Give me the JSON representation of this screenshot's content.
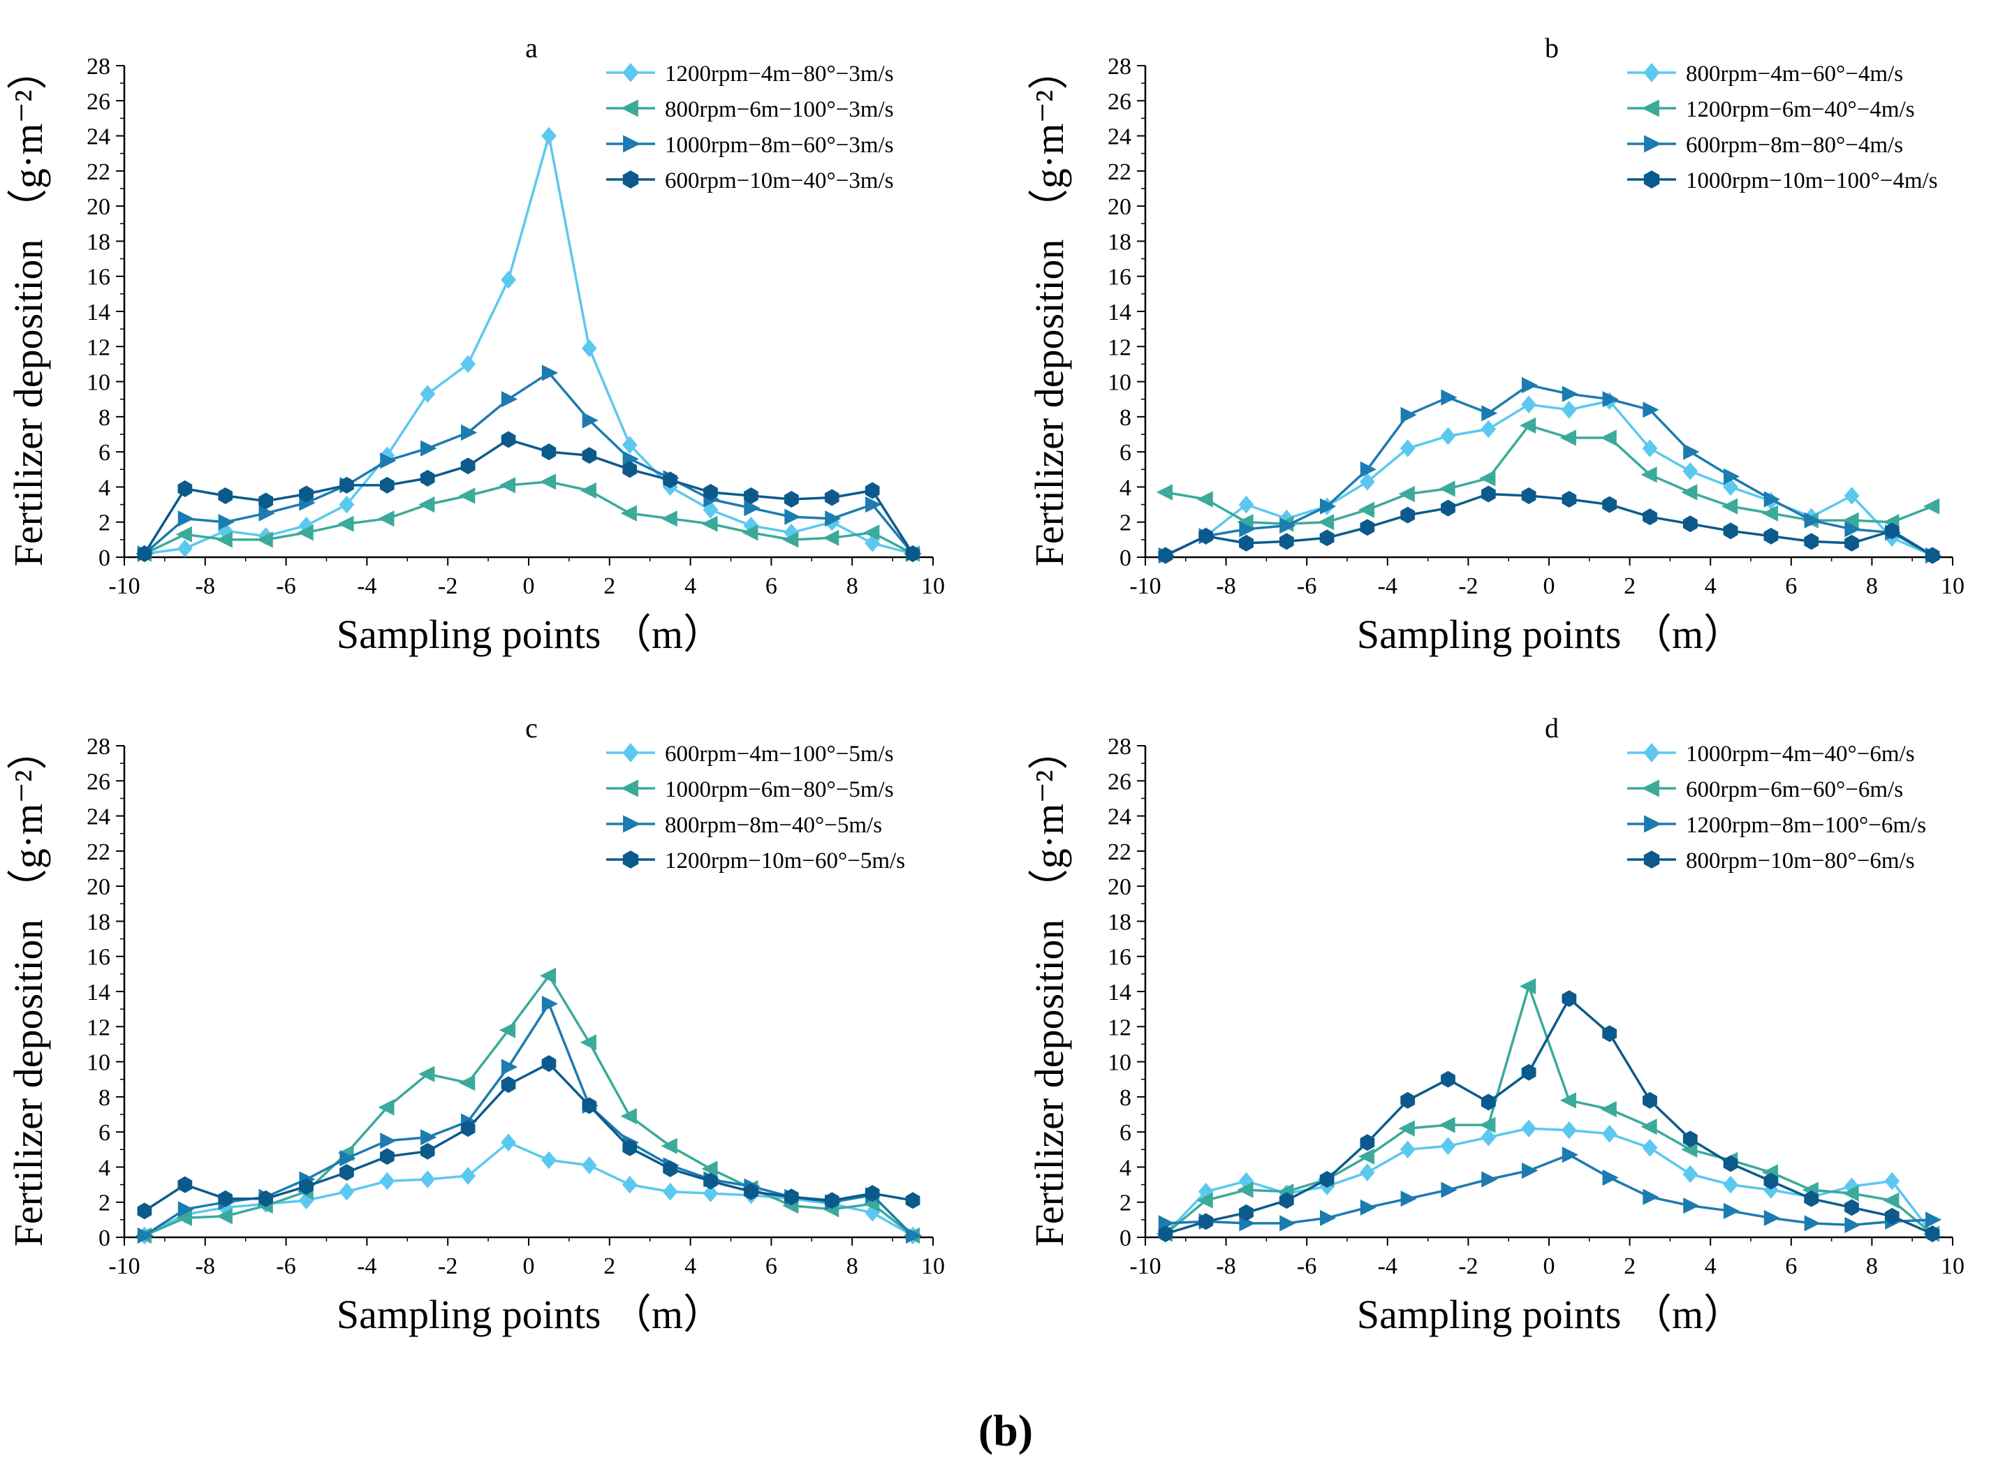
{
  "figure_label": {
    "open": "(",
    "letter": "b",
    "close": ")"
  },
  "colors": {
    "s1": "#5BC8F0",
    "s2": "#3BAA9A",
    "s3": "#1C7BB0",
    "s4": "#0C5A8C"
  },
  "chart_data": [
    {
      "type": "line",
      "panel": "a",
      "title": "a",
      "xlabel": "Sampling points （m）",
      "ylabel": "Fertilizer deposition （g·m⁻²）",
      "xlim": [
        -10,
        10
      ],
      "ylim": [
        0,
        28
      ],
      "xticks": [
        -10,
        -8,
        -6,
        -4,
        -2,
        0,
        2,
        4,
        6,
        8,
        10
      ],
      "yticks": [
        0,
        2,
        4,
        6,
        8,
        10,
        12,
        14,
        16,
        18,
        20,
        22,
        24,
        26,
        28
      ],
      "x": [
        -9.5,
        -8.5,
        -7.5,
        -6.5,
        -5.5,
        -4.5,
        -3.5,
        -2.5,
        -1.5,
        -0.5,
        0.5,
        1.5,
        2.5,
        3.5,
        4.5,
        5.5,
        6.5,
        7.5,
        8.5,
        9.5
      ],
      "legend_position": "top-right",
      "series": [
        {
          "name": "1200rpm−4m−80°−3m/s",
          "marker": "diamond",
          "color": "#5BC8F0",
          "values": [
            0.2,
            0.5,
            1.5,
            1.2,
            1.8,
            3.0,
            5.8,
            9.3,
            11.0,
            15.8,
            24.0,
            11.9,
            6.4,
            4.0,
            2.7,
            1.8,
            1.4,
            2.0,
            0.8,
            0.2
          ]
        },
        {
          "name": "800rpm−6m−100°−3m/s",
          "marker": "triangle-left",
          "color": "#3BAA9A",
          "values": [
            0.2,
            1.3,
            1.0,
            1.0,
            1.4,
            1.9,
            2.2,
            3.0,
            3.5,
            4.1,
            4.3,
            3.8,
            2.5,
            2.2,
            1.9,
            1.4,
            1.0,
            1.1,
            1.4,
            0.2
          ]
        },
        {
          "name": "1000rpm−8m−60°−3m/s",
          "marker": "triangle-right",
          "color": "#1C7BB0",
          "values": [
            0.2,
            2.2,
            2.0,
            2.5,
            3.1,
            4.1,
            5.5,
            6.2,
            7.1,
            9.0,
            10.5,
            7.8,
            5.6,
            4.5,
            3.3,
            2.8,
            2.3,
            2.2,
            3.0,
            0.2
          ]
        },
        {
          "name": "600rpm−10m−40°−3m/s",
          "marker": "hexagon",
          "color": "#0C5A8C",
          "values": [
            0.2,
            3.9,
            3.5,
            3.2,
            3.6,
            4.1,
            4.1,
            4.5,
            5.2,
            6.7,
            6.0,
            5.8,
            5.0,
            4.4,
            3.7,
            3.5,
            3.3,
            3.4,
            3.8,
            0.2
          ]
        }
      ]
    },
    {
      "type": "line",
      "panel": "b",
      "title": "b",
      "xlabel": "Sampling points （m）",
      "ylabel": "Fertilizer deposition （g·m⁻²）",
      "xlim": [
        -10,
        10
      ],
      "ylim": [
        0,
        28
      ],
      "xticks": [
        -10,
        -8,
        -6,
        -4,
        -2,
        0,
        2,
        4,
        6,
        8,
        10
      ],
      "yticks": [
        0,
        2,
        4,
        6,
        8,
        10,
        12,
        14,
        16,
        18,
        20,
        22,
        24,
        26,
        28
      ],
      "x": [
        -9.5,
        -8.5,
        -7.5,
        -6.5,
        -5.5,
        -4.5,
        -3.5,
        -2.5,
        -1.5,
        -0.5,
        0.5,
        1.5,
        2.5,
        3.5,
        4.5,
        5.5,
        6.5,
        7.5,
        8.5,
        9.5
      ],
      "legend_position": "top-right",
      "series": [
        {
          "name": "800rpm−4m−60°−4m/s",
          "marker": "diamond",
          "color": "#5BC8F0",
          "values": [
            0.1,
            1.2,
            3.0,
            2.2,
            2.9,
            4.3,
            6.2,
            6.9,
            7.3,
            8.7,
            8.4,
            8.9,
            6.2,
            4.9,
            4.0,
            3.2,
            2.3,
            3.5,
            1.1,
            0.1
          ]
        },
        {
          "name": "1200rpm−6m−40°−4m/s",
          "marker": "triangle-left",
          "color": "#3BAA9A",
          "values": [
            3.7,
            3.3,
            2.0,
            1.9,
            2.0,
            2.7,
            3.6,
            3.9,
            4.5,
            7.5,
            6.8,
            6.8,
            4.7,
            3.7,
            2.9,
            2.5,
            2.1,
            2.1,
            2.0,
            2.9
          ]
        },
        {
          "name": "600rpm−8m−80°−4m/s",
          "marker": "triangle-right",
          "color": "#1C7BB0",
          "values": [
            0.1,
            1.2,
            1.6,
            1.8,
            2.9,
            5.0,
            8.1,
            9.1,
            8.2,
            9.8,
            9.3,
            9.0,
            8.4,
            6.0,
            4.6,
            3.3,
            2.1,
            1.6,
            1.4,
            0.1
          ]
        },
        {
          "name": "1000rpm−10m−100°−4m/s",
          "marker": "hexagon",
          "color": "#0C5A8C",
          "values": [
            0.1,
            1.2,
            0.8,
            0.9,
            1.1,
            1.7,
            2.4,
            2.8,
            3.6,
            3.5,
            3.3,
            3.0,
            2.3,
            1.9,
            1.5,
            1.2,
            0.9,
            0.8,
            1.5,
            0.1
          ]
        }
      ]
    },
    {
      "type": "line",
      "panel": "c",
      "title": "c",
      "xlabel": "Sampling points （m）",
      "ylabel": "Fertilizer deposition （g·m⁻²）",
      "xlim": [
        -10,
        10
      ],
      "ylim": [
        0,
        28
      ],
      "xticks": [
        -10,
        -8,
        -6,
        -4,
        -2,
        0,
        2,
        4,
        6,
        8,
        10
      ],
      "yticks": [
        0,
        2,
        4,
        6,
        8,
        10,
        12,
        14,
        16,
        18,
        20,
        22,
        24,
        26,
        28
      ],
      "x": [
        -9.5,
        -8.5,
        -7.5,
        -6.5,
        -5.5,
        -4.5,
        -3.5,
        -2.5,
        -1.5,
        -0.5,
        0.5,
        1.5,
        2.5,
        3.5,
        4.5,
        5.5,
        6.5,
        7.5,
        8.5,
        9.5
      ],
      "legend_position": "top-right",
      "series": [
        {
          "name": "600rpm−4m−100°−5m/s",
          "marker": "diamond",
          "color": "#5BC8F0",
          "values": [
            0.1,
            1.3,
            1.7,
            1.9,
            2.1,
            2.6,
            3.2,
            3.3,
            3.5,
            5.4,
            4.4,
            4.1,
            3.0,
            2.6,
            2.5,
            2.4,
            2.2,
            1.9,
            1.4,
            0.1
          ]
        },
        {
          "name": "1000rpm−6m−80°−5m/s",
          "marker": "triangle-left",
          "color": "#3BAA9A",
          "values": [
            0.1,
            1.1,
            1.2,
            1.8,
            2.6,
            4.8,
            7.4,
            9.3,
            8.8,
            11.8,
            14.9,
            11.1,
            6.9,
            5.2,
            3.9,
            2.8,
            1.8,
            1.6,
            1.9,
            0.1
          ]
        },
        {
          "name": "800rpm−8m−40°−5m/s",
          "marker": "triangle-right",
          "color": "#1C7BB0",
          "values": [
            0.1,
            1.6,
            2.0,
            2.3,
            3.3,
            4.5,
            5.5,
            5.7,
            6.6,
            9.7,
            13.3,
            7.5,
            5.4,
            4.1,
            3.3,
            2.9,
            2.3,
            2.0,
            2.4,
            0.1
          ]
        },
        {
          "name": "1200rpm−10m−60°−5m/s",
          "marker": "hexagon",
          "color": "#0C5A8C",
          "values": [
            1.5,
            3.0,
            2.2,
            2.2,
            2.9,
            3.7,
            4.6,
            4.9,
            6.2,
            8.7,
            9.9,
            7.5,
            5.1,
            3.9,
            3.2,
            2.6,
            2.3,
            2.1,
            2.5,
            2.1
          ]
        }
      ]
    },
    {
      "type": "line",
      "panel": "d",
      "title": "d",
      "xlabel": "Sampling points （m）",
      "ylabel": "Fertilizer deposition （g·m⁻²）",
      "xlim": [
        -10,
        10
      ],
      "ylim": [
        0,
        28
      ],
      "xticks": [
        -10,
        -8,
        -6,
        -4,
        -2,
        0,
        2,
        4,
        6,
        8,
        10
      ],
      "yticks": [
        0,
        2,
        4,
        6,
        8,
        10,
        12,
        14,
        16,
        18,
        20,
        22,
        24,
        26,
        28
      ],
      "x": [
        -9.5,
        -8.5,
        -7.5,
        -6.5,
        -5.5,
        -4.5,
        -3.5,
        -2.5,
        -1.5,
        -0.5,
        0.5,
        1.5,
        2.5,
        3.5,
        4.5,
        5.5,
        6.5,
        7.5,
        8.5,
        9.5
      ],
      "legend_position": "top-right",
      "series": [
        {
          "name": "1000rpm−4m−40°−6m/s",
          "marker": "diamond",
          "color": "#5BC8F0",
          "values": [
            0.2,
            2.6,
            3.2,
            2.5,
            2.9,
            3.7,
            5.0,
            5.2,
            5.7,
            6.2,
            6.1,
            5.9,
            5.1,
            3.6,
            3.0,
            2.7,
            2.3,
            2.9,
            3.2,
            0.2
          ]
        },
        {
          "name": "600rpm−6m−60°−6m/s",
          "marker": "triangle-left",
          "color": "#3BAA9A",
          "values": [
            0.2,
            2.1,
            2.7,
            2.6,
            3.3,
            4.6,
            6.2,
            6.4,
            6.4,
            14.3,
            7.8,
            7.3,
            6.3,
            5.0,
            4.4,
            3.7,
            2.7,
            2.5,
            2.1,
            0.2
          ]
        },
        {
          "name": "1200rpm−8m−100°−6m/s",
          "marker": "triangle-right",
          "color": "#1C7BB0",
          "values": [
            0.8,
            0.9,
            0.8,
            0.8,
            1.1,
            1.7,
            2.2,
            2.7,
            3.3,
            3.8,
            4.7,
            3.4,
            2.3,
            1.8,
            1.5,
            1.1,
            0.8,
            0.7,
            0.9,
            1.0
          ]
        },
        {
          "name": "800rpm−10m−80°−6m/s",
          "marker": "hexagon",
          "color": "#0C5A8C",
          "values": [
            0.2,
            0.9,
            1.4,
            2.1,
            3.3,
            5.4,
            7.8,
            9.0,
            7.7,
            9.4,
            13.6,
            11.6,
            7.8,
            5.6,
            4.2,
            3.2,
            2.2,
            1.7,
            1.2,
            0.2
          ]
        }
      ]
    }
  ]
}
